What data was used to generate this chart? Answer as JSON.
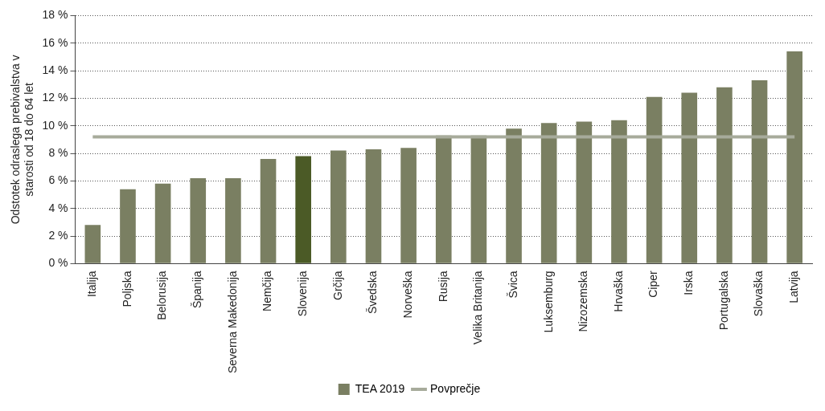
{
  "chart_data": {
    "type": "bar",
    "ylabel": "Odstotek odraslega prebivalstva v starosti od 18 do 64 let",
    "categories": [
      "Italija",
      "Poljska",
      "Belorusija",
      "Španija",
      "Severna Makedonija",
      "Nemčija",
      "Slovenija",
      "Grčija",
      "Švedska",
      "Norveška",
      "Rusija",
      "Velika Britanija",
      "Švica",
      "Luksemburg",
      "Nizozemska",
      "Hrvaška",
      "Ciper",
      "Irska",
      "Portugalska",
      "Slovaška",
      "Latvija"
    ],
    "series": [
      {
        "name": "TEA 2019",
        "color": "#7a7f62",
        "colors": [
          "#7a7f62",
          "#7a7f62",
          "#7a7f62",
          "#7a7f62",
          "#7a7f62",
          "#7a7f62",
          "#4b5a26",
          "#7a7f62",
          "#7a7f62",
          "#7a7f62",
          "#7a7f62",
          "#7a7f62",
          "#7a7f62",
          "#7a7f62",
          "#7a7f62",
          "#7a7f62",
          "#7a7f62",
          "#7a7f62",
          "#7a7f62",
          "#7a7f62",
          "#7a7f62"
        ],
        "values": [
          2.8,
          5.4,
          5.8,
          6.2,
          6.2,
          7.6,
          7.8,
          8.2,
          8.3,
          8.4,
          9.3,
          9.3,
          9.8,
          10.2,
          10.3,
          10.4,
          12.1,
          12.4,
          12.8,
          13.3,
          15.4
        ]
      },
      {
        "name": "Povprečje",
        "type": "line",
        "color": "#a7ab9b",
        "values": [
          9.2,
          9.2,
          9.2,
          9.2,
          9.2,
          9.2,
          9.2,
          9.2,
          9.2,
          9.2,
          9.2,
          9.2,
          9.2,
          9.2,
          9.2,
          9.2,
          9.2,
          9.2,
          9.2,
          9.2,
          9.2
        ]
      }
    ],
    "ylim": [
      0,
      18
    ],
    "yticks": [
      {
        "value": 0,
        "label": "0 %"
      },
      {
        "value": 2,
        "label": "2 %"
      },
      {
        "value": 4,
        "label": "4 %"
      },
      {
        "value": 6,
        "label": "6 %"
      },
      {
        "value": 8,
        "label": "8 %"
      },
      {
        "value": 10,
        "label": "10 %"
      },
      {
        "value": 12,
        "label": "12 %"
      },
      {
        "value": 14,
        "label": "14 %"
      },
      {
        "value": 16,
        "label": "16 %"
      },
      {
        "value": 18,
        "label": "18 %"
      }
    ],
    "grid": "y",
    "legend": "bottom",
    "marker": "none",
    "line_style": "solid"
  }
}
